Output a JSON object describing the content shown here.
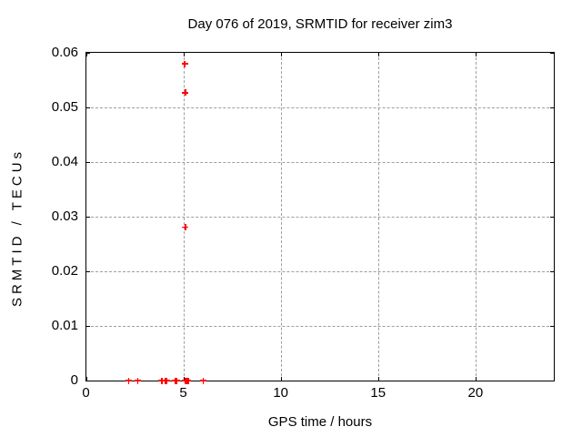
{
  "chart_data": {
    "type": "scatter",
    "title": "Day 076 of 2019, SRMTID for receiver zim3",
    "xlabel": "GPS time / hours",
    "ylabel": "SRMTID / TECUs",
    "xlim": [
      0,
      24
    ],
    "ylim": [
      0,
      0.06
    ],
    "grid": true,
    "legend": "none",
    "marker_style": "plus",
    "marker_color": "#ff0000",
    "grid_color": "#9e9e9e",
    "axis_color": "#000000",
    "background": "#ffffff",
    "xticks": [
      {
        "v": 0,
        "label": "0"
      },
      {
        "v": 5,
        "label": "5"
      },
      {
        "v": 10,
        "label": "10"
      },
      {
        "v": 15,
        "label": "15"
      },
      {
        "v": 20,
        "label": "20"
      }
    ],
    "yticks": [
      {
        "v": 0,
        "label": "0"
      },
      {
        "v": 0.01,
        "label": "0.01"
      },
      {
        "v": 0.02,
        "label": "0.02"
      },
      {
        "v": 0.03,
        "label": "0.03"
      },
      {
        "v": 0.04,
        "label": "0.04"
      },
      {
        "v": 0.05,
        "label": "0.05"
      },
      {
        "v": 0.06,
        "label": "0.06"
      }
    ],
    "points": [
      {
        "x": 5.05,
        "y": 0.058
      },
      {
        "x": 5.08,
        "y": 0.0527
      },
      {
        "x": 5.08,
        "y": 0.0281
      },
      {
        "x": 2.17,
        "y": 0
      },
      {
        "x": 2.63,
        "y": 0
      },
      {
        "x": 3.86,
        "y": 0
      },
      {
        "x": 3.9,
        "y": 0
      },
      {
        "x": 4.07,
        "y": 0
      },
      {
        "x": 4.11,
        "y": 0
      },
      {
        "x": 4.55,
        "y": 0
      },
      {
        "x": 4.58,
        "y": 0
      },
      {
        "x": 4.61,
        "y": 0
      },
      {
        "x": 4.64,
        "y": 0
      },
      {
        "x": 5.06,
        "y": 0
      },
      {
        "x": 5.1,
        "y": 0
      },
      {
        "x": 5.14,
        "y": 0
      },
      {
        "x": 5.18,
        "y": 0
      },
      {
        "x": 5.22,
        "y": 0
      },
      {
        "x": 6.01,
        "y": 0
      }
    ]
  }
}
